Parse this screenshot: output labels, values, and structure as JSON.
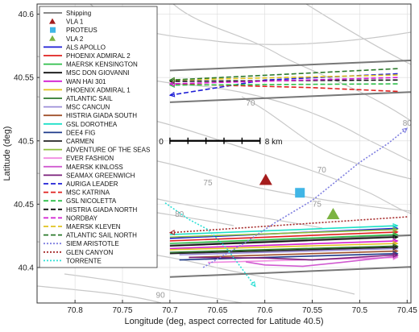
{
  "chart_data": {
    "type": "line",
    "xlabel": "Longitude (deg, aspect corrected for Latitude 40.5)",
    "ylabel": "Latitude (deg)",
    "xlim": [
      70.84,
      70.446
    ],
    "x_reversed": true,
    "ylim": [
      40.372,
      40.608
    ],
    "x_ticks": [
      70.8,
      70.75,
      70.7,
      70.65,
      70.6,
      70.55,
      70.5,
      70.45
    ],
    "x_tick_labels": [
      "70.8",
      "70.75",
      "70.7",
      "70.65",
      "70.6",
      "70.55",
      "70.5",
      "70.45"
    ],
    "y_ticks": [
      40.4,
      40.45,
      40.5,
      40.55,
      40.6
    ],
    "y_tick_labels": [
      "40.4",
      "40.45",
      "40.5",
      "40.55",
      "40.6"
    ],
    "grid": true,
    "legend_placement": "upper-left",
    "contour_labels": [
      {
        "text": "70",
        "x": 70.615,
        "y": 40.528
      },
      {
        "text": "70",
        "x": 70.54,
        "y": 40.475
      },
      {
        "text": "75",
        "x": 70.66,
        "y": 40.465
      },
      {
        "text": "80",
        "x": 70.69,
        "y": 40.44
      },
      {
        "text": "75",
        "x": 70.545,
        "y": 40.448
      },
      {
        "text": "90",
        "x": 70.71,
        "y": 40.376
      },
      {
        "text": "80",
        "x": 70.45,
        "y": 40.512
      }
    ],
    "scale_bar": {
      "start_label": "0",
      "end_label": "8 km",
      "x_start": 70.7,
      "x_end": 70.605,
      "y": 40.5,
      "ticks": 6
    },
    "shipping_lanes": [
      [
        [
          70.7,
          40.5555
        ],
        [
          70.446,
          40.5635
        ]
      ],
      [
        [
          70.7,
          40.5305
        ],
        [
          70.446,
          40.5385
        ]
      ],
      [
        [
          70.7,
          40.4175
        ],
        [
          70.446,
          40.4255
        ]
      ],
      [
        [
          70.7,
          40.3925
        ],
        [
          70.446,
          40.4005
        ]
      ]
    ],
    "markers": [
      {
        "name": "VLA 1",
        "shape": "triangle",
        "color": "#a51c1c",
        "x": 70.599,
        "y": 40.469
      },
      {
        "name": "PROTEUS",
        "shape": "square",
        "color": "#41b6e6",
        "x": 70.563,
        "y": 40.459
      },
      {
        "name": "VLA 2",
        "shape": "triangle",
        "color": "#7cb342",
        "x": 70.528,
        "y": 40.442
      }
    ],
    "series": [
      {
        "name": "Shipping",
        "color": "#777777",
        "style": "solid",
        "points": []
      },
      {
        "name": "ALS APOLLO",
        "color": "#1f1fd6",
        "style": "solid",
        "points": [
          [
            70.7,
            40.423
          ],
          [
            70.46,
            40.431
          ]
        ]
      },
      {
        "name": "PHOENIX ADMIRAL 2",
        "color": "#e0201e",
        "style": "solid",
        "points": [
          [
            70.7,
            40.421
          ],
          [
            70.46,
            40.428
          ]
        ]
      },
      {
        "name": "MAERSK KENSINGTON",
        "color": "#2fbf4a",
        "style": "solid",
        "points": [
          [
            70.7,
            40.419
          ],
          [
            70.46,
            40.426
          ]
        ]
      },
      {
        "name": "MSC DON GIOVANNI",
        "color": "#111111",
        "style": "solid",
        "points": [
          [
            70.7,
            40.417
          ],
          [
            70.46,
            40.424
          ]
        ]
      },
      {
        "name": "WAN HAI 301",
        "color": "#d21fd2",
        "style": "solid",
        "points": [
          [
            70.7,
            40.415
          ],
          [
            70.46,
            40.421
          ]
        ]
      },
      {
        "name": "PHOENIX ADMIRAL 1",
        "color": "#e0c21e",
        "style": "solid",
        "points": [
          [
            70.7,
            40.414
          ],
          [
            70.46,
            40.419
          ]
        ]
      },
      {
        "name": "ATLANTIC SAIL",
        "color": "#2c7a2c",
        "style": "solid",
        "points": [
          [
            70.7,
            40.412
          ],
          [
            70.46,
            40.417
          ]
        ]
      },
      {
        "name": "MSC CANCUN",
        "color": "#9c8fd8",
        "style": "solid",
        "points": [
          [
            70.69,
            40.41
          ],
          [
            70.46,
            40.415
          ]
        ]
      },
      {
        "name": "HISTRIA GIADA SOUTH",
        "color": "#a0522d",
        "style": "solid",
        "points": [
          [
            70.68,
            40.408
          ],
          [
            70.46,
            40.413
          ]
        ]
      },
      {
        "name": "GSL DOROTHEA",
        "color": "#1ee0c8",
        "style": "solid",
        "points": [
          [
            70.7,
            40.426
          ],
          [
            70.46,
            40.433
          ]
        ]
      },
      {
        "name": "DEE4 FIG",
        "color": "#1e3a8a",
        "style": "solid",
        "points": [
          [
            70.69,
            40.406
          ],
          [
            70.46,
            40.411
          ]
        ]
      },
      {
        "name": "CARMEN",
        "color": "#222222",
        "style": "solid",
        "points": [
          [
            70.7,
            40.411
          ],
          [
            70.46,
            40.416
          ]
        ]
      },
      {
        "name": "ADVENTURE OF THE SEAS",
        "color": "#8fbf3f",
        "style": "solid",
        "points": [
          [
            70.7,
            40.424
          ],
          [
            70.46,
            40.43
          ]
        ]
      },
      {
        "name": "EVER FASHION",
        "color": "#f08ae0",
        "style": "solid",
        "points": [
          [
            70.66,
            40.404
          ],
          [
            70.46,
            40.408
          ]
        ]
      },
      {
        "name": "MAERSK KINLOSS",
        "color": "#d15bd1",
        "style": "solid",
        "points": [
          [
            70.62,
            40.4045
          ],
          [
            70.6,
            40.402
          ],
          [
            70.56,
            40.401
          ],
          [
            70.52,
            40.404
          ],
          [
            70.46,
            40.409
          ]
        ]
      },
      {
        "name": "SEAMAX GREENWICH",
        "color": "#7a1f7a",
        "style": "solid",
        "points": [
          [
            70.68,
            40.408
          ],
          [
            70.6,
            40.4075
          ],
          [
            70.55,
            40.406
          ],
          [
            70.46,
            40.41
          ]
        ]
      },
      {
        "name": "AURIGA LEADER",
        "color": "#1f1fd6",
        "style": "dashed",
        "points": [
          [
            70.46,
            40.553
          ],
          [
            70.6,
            40.548
          ],
          [
            70.7,
            40.536
          ]
        ]
      },
      {
        "name": "MSC KATRINA",
        "color": "#e0201e",
        "style": "dashed",
        "points": [
          [
            70.46,
            40.539
          ],
          [
            70.55,
            40.542
          ],
          [
            70.7,
            40.545
          ]
        ]
      },
      {
        "name": "GSL NICOLETTA",
        "color": "#2fbf4a",
        "style": "dashed",
        "points": [
          [
            70.46,
            40.545
          ],
          [
            70.7,
            40.544
          ]
        ]
      },
      {
        "name": "HISTRIA GIADA NORTH",
        "color": "#111111",
        "style": "dashed",
        "points": [
          [
            70.46,
            40.548
          ],
          [
            70.7,
            40.547
          ]
        ]
      },
      {
        "name": "NORDBAY",
        "color": "#d21fd2",
        "style": "dashed",
        "points": [
          [
            70.46,
            40.55
          ],
          [
            70.7,
            40.545
          ]
        ]
      },
      {
        "name": "MAERSK KLEVEN",
        "color": "#e0c21e",
        "style": "dashed",
        "points": [
          [
            70.46,
            40.552
          ],
          [
            70.7,
            40.548
          ]
        ]
      },
      {
        "name": "ATLANTIC SAIL NORTH",
        "color": "#2c7a2c",
        "style": "dashed",
        "points": [
          [
            70.46,
            40.557
          ],
          [
            70.7,
            40.548
          ]
        ]
      },
      {
        "name": "SIEM ARISTOTLE",
        "color": "#8080e0",
        "style": "dotted",
        "points": [
          [
            70.665,
            40.4
          ],
          [
            70.62,
            40.42
          ],
          [
            70.59,
            40.435
          ],
          [
            70.55,
            40.453
          ],
          [
            70.5,
            40.483
          ],
          [
            70.47,
            40.498
          ],
          [
            70.45,
            40.51
          ]
        ]
      },
      {
        "name": "GLEN CANYON",
        "color": "#a52a2a",
        "style": "dotted",
        "points": [
          [
            70.45,
            40.44
          ],
          [
            70.7,
            40.4275
          ]
        ]
      },
      {
        "name": "TORRENTE",
        "color": "#2fe0d6",
        "style": "dotted",
        "points": [
          [
            70.705,
            40.451
          ],
          [
            70.68,
            40.438
          ],
          [
            70.66,
            40.43
          ],
          [
            70.64,
            40.415
          ],
          [
            70.62,
            40.395
          ],
          [
            70.61,
            40.385
          ]
        ]
      }
    ]
  }
}
